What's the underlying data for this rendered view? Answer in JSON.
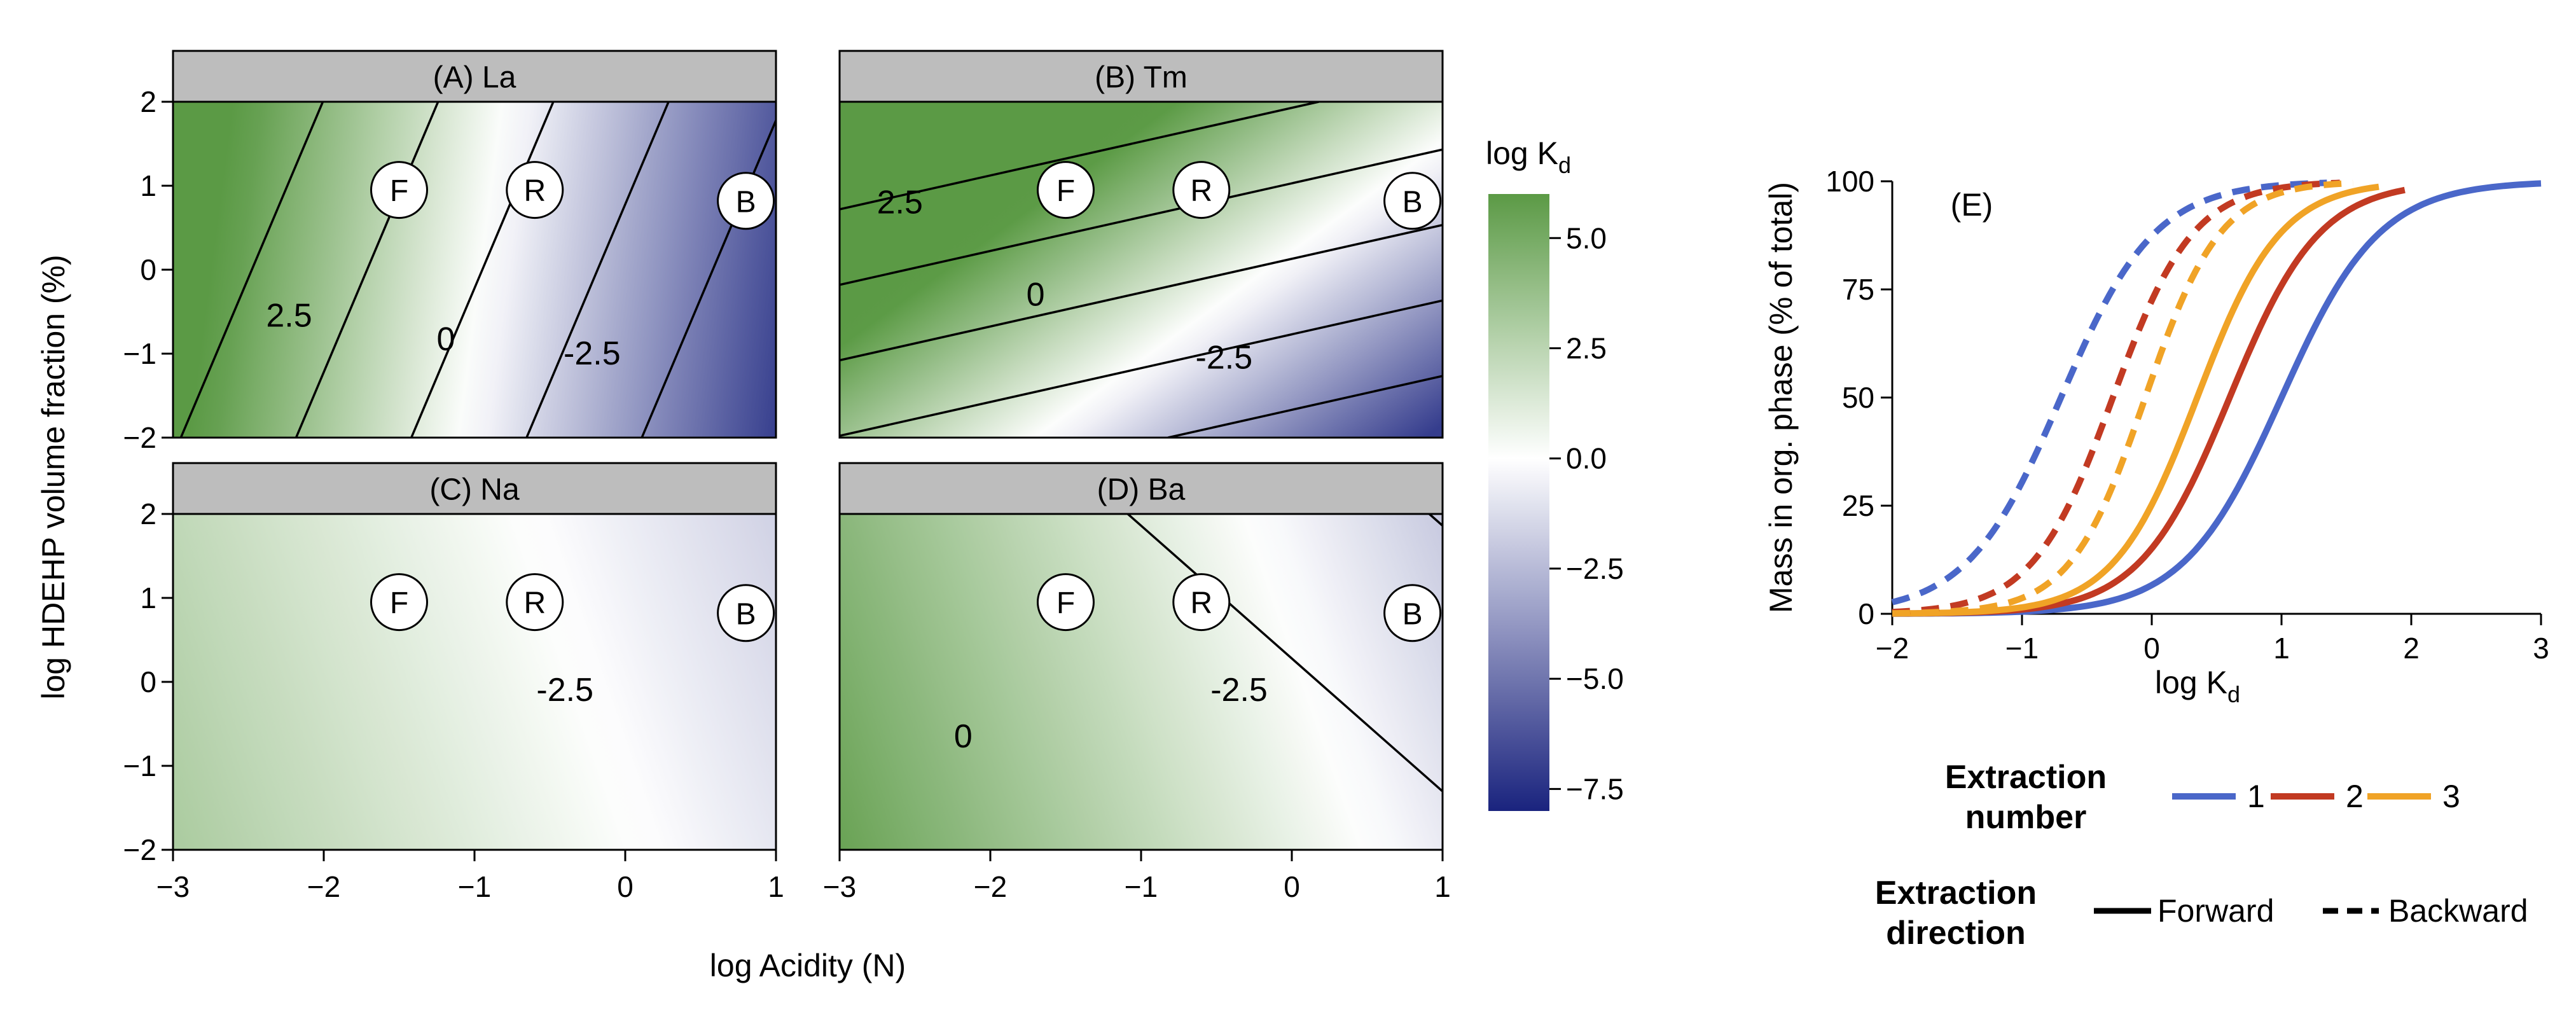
{
  "chart_data": [
    {
      "type": "heatmap",
      "panels": [
        {
          "id": "A",
          "title": "(A) La",
          "z0": -3.1,
          "ax": -3.27,
          "by": 0.77,
          "contours": [
            {
              "level": 5.0,
              "label": ""
            },
            {
              "level": 2.5,
              "label": "2.5",
              "lx": -2.23,
              "ly": -0.55
            },
            {
              "level": 0.0,
              "label": "0",
              "lx": -1.19,
              "ly": -0.83
            },
            {
              "level": -2.5,
              "label": "-2.5",
              "lx": -0.22,
              "ly": -1.0
            },
            {
              "level": -5.0,
              "label": ""
            }
          ],
          "markers": [
            {
              "label": "F",
              "x": -1.5,
              "y": 0.95
            },
            {
              "label": "R",
              "x": -0.6,
              "y": 0.95
            },
            {
              "label": "B",
              "x": 0.8,
              "y": 0.82
            }
          ]
        },
        {
          "id": "B",
          "title": "(B) Tm",
          "z0": -0.36,
          "ax": -1.12,
          "by": 2.78,
          "contours": [
            {
              "level": 5.0,
              "label": ""
            },
            {
              "level": 2.5,
              "label": "2.5",
              "lx": -2.6,
              "ly": 0.8
            },
            {
              "level": 0.0,
              "label": "0",
              "lx": -1.7,
              "ly": -0.3
            },
            {
              "level": -2.5,
              "label": "-2.5",
              "lx": -0.45,
              "ly": -1.05
            },
            {
              "level": -5.0,
              "label": ""
            }
          ],
          "markers": [
            {
              "label": "F",
              "x": -1.5,
              "y": 0.95
            },
            {
              "label": "R",
              "x": -0.6,
              "y": 0.95
            },
            {
              "label": "B",
              "x": 0.8,
              "y": 0.82
            }
          ]
        },
        {
          "id": "C",
          "title": "(C) Na",
          "z0": -0.26,
          "ax": -0.8,
          "by": -0.5,
          "contours": [
            {
              "level": -2.5,
              "label": "-2.5",
              "lx": -0.4,
              "ly": -0.1
            }
          ],
          "markers": [
            {
              "label": "F",
              "x": -1.5,
              "y": 0.95
            },
            {
              "label": "R",
              "x": -0.6,
              "y": 0.95
            },
            {
              "label": "B",
              "x": 0.8,
              "y": 0.82
            }
          ]
        },
        {
          "id": "D",
          "title": "(D) Ba",
          "z0": 0.22,
          "ax": -1.25,
          "by": -0.79,
          "contours": [
            {
              "level": 0.0,
              "label": "0",
              "lx": -2.18,
              "ly": -0.65
            },
            {
              "level": -2.5,
              "label": "-2.5",
              "lx": -0.35,
              "ly": -0.1
            },
            {
              "level": -5.0,
              "label": ""
            }
          ],
          "markers": [
            {
              "label": "F",
              "x": -1.5,
              "y": 0.95
            },
            {
              "label": "R",
              "x": -0.6,
              "y": 0.95
            },
            {
              "label": "B",
              "x": 0.8,
              "y": 0.82
            }
          ]
        }
      ],
      "xlabel": "log Acidity (N)",
      "ylabel": "log HDEHP volume fraction (%)",
      "xlim": [
        -3,
        1
      ],
      "ylim": [
        -2,
        2
      ],
      "xticks": [
        {
          "v": -3,
          "t": "−3"
        },
        {
          "v": -2,
          "t": "−2"
        },
        {
          "v": -1,
          "t": "−1"
        },
        {
          "v": 0,
          "t": "0"
        },
        {
          "v": 1,
          "t": "1"
        }
      ],
      "yticks": [
        {
          "v": -2,
          "t": "−2"
        },
        {
          "v": -1,
          "t": "−1"
        },
        {
          "v": 0,
          "t": "0"
        },
        {
          "v": 1,
          "t": "1"
        },
        {
          "v": 2,
          "t": "2"
        }
      ],
      "colorbar": {
        "title_main": "log K",
        "title_sub": "d",
        "range": [
          -8,
          6
        ],
        "ticks": [
          {
            "v": 5,
            "t": "5.0"
          },
          {
            "v": 2.5,
            "t": "2.5"
          },
          {
            "v": 0,
            "t": "0.0"
          },
          {
            "v": -2.5,
            "t": "−2.5"
          },
          {
            "v": -5,
            "t": "−5.0"
          },
          {
            "v": -7.5,
            "t": "−7.5"
          }
        ],
        "colors": {
          "positive": "#5b9a45",
          "zero": "#ffffff",
          "negative": "#1a237e"
        }
      }
    },
    {
      "type": "line",
      "panel_label": "(E)",
      "xlabel_main": "log K",
      "xlabel_sub": "d",
      "ylabel": "Mass in org. phase (% of total)",
      "xlim": [
        -2,
        3
      ],
      "ylim": [
        0,
        100
      ],
      "xticks": [
        {
          "v": -2,
          "t": "−2"
        },
        {
          "v": -1,
          "t": "−1"
        },
        {
          "v": 0,
          "t": "0"
        },
        {
          "v": 1,
          "t": "1"
        },
        {
          "v": 2,
          "t": "2"
        },
        {
          "v": 3,
          "t": "3"
        }
      ],
      "yticks": [
        {
          "v": 0,
          "t": "0"
        },
        {
          "v": 25,
          "t": "25"
        },
        {
          "v": 50,
          "t": "50"
        },
        {
          "v": 75,
          "t": "75"
        },
        {
          "v": 100,
          "t": "100"
        }
      ],
      "series": [
        {
          "extraction": "1",
          "direction": "Forward",
          "color": "#4a67c9",
          "midpoint": 1.0,
          "slope": 1.15,
          "xmax": 3.0
        },
        {
          "extraction": "2",
          "direction": "Forward",
          "color": "#c23a22",
          "midpoint": 0.6,
          "slope": 1.25,
          "xmax": 1.95
        },
        {
          "extraction": "3",
          "direction": "Forward",
          "color": "#f0a326",
          "midpoint": 0.35,
          "slope": 1.35,
          "xmax": 1.75
        },
        {
          "extraction": "1",
          "direction": "Backward",
          "color": "#4a67c9",
          "midpoint": -0.7,
          "slope": 1.2,
          "xmax": 1.35
        },
        {
          "extraction": "2",
          "direction": "Backward",
          "color": "#c23a22",
          "midpoint": -0.3,
          "slope": 1.4,
          "xmax": 1.45
        },
        {
          "extraction": "3",
          "direction": "Backward",
          "color": "#f0a326",
          "midpoint": -0.05,
          "slope": 1.5,
          "xmax": 1.55
        }
      ],
      "legend": {
        "number_title_1": "Extraction",
        "number_title_2": "number",
        "numbers": [
          "1",
          "2",
          "3"
        ],
        "direction_title_1": "Extraction",
        "direction_title_2": "direction",
        "directions": [
          "Forward",
          "Backward"
        ]
      }
    }
  ]
}
